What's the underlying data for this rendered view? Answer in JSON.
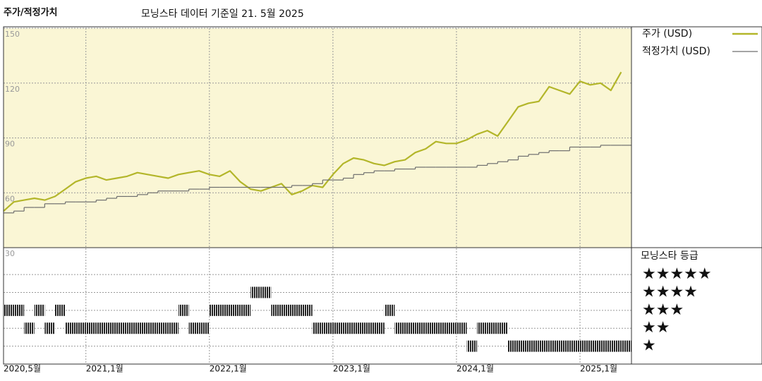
{
  "chart_data": [
    {
      "type": "line",
      "title": "주가/적정가치",
      "subtitle": "모닝스타 데이터 기준일 21. 5월 2025",
      "x": [
        "2020-05",
        "2020-06",
        "2020-07",
        "2020-08",
        "2020-09",
        "2020-10",
        "2020-11",
        "2020-12",
        "2021-01",
        "2021-02",
        "2021-03",
        "2021-04",
        "2021-05",
        "2021-06",
        "2021-07",
        "2021-08",
        "2021-09",
        "2021-10",
        "2021-11",
        "2021-12",
        "2022-01",
        "2022-02",
        "2022-03",
        "2022-04",
        "2022-05",
        "2022-06",
        "2022-07",
        "2022-08",
        "2022-09",
        "2022-10",
        "2022-11",
        "2022-12",
        "2023-01",
        "2023-02",
        "2023-03",
        "2023-04",
        "2023-05",
        "2023-06",
        "2023-07",
        "2023-08",
        "2023-09",
        "2023-10",
        "2023-11",
        "2023-12",
        "2024-01",
        "2024-02",
        "2024-03",
        "2024-04",
        "2024-05",
        "2024-06",
        "2024-07",
        "2024-08",
        "2024-09",
        "2024-10",
        "2024-11",
        "2024-12",
        "2025-01",
        "2025-02",
        "2025-03",
        "2025-04",
        "2025-05"
      ],
      "xlim": [
        "2020-05",
        "2025-06"
      ],
      "ylim": [
        30,
        150
      ],
      "yticks": [
        30,
        60,
        90,
        120,
        150
      ],
      "grid": true,
      "background": "#faf6d5",
      "series": [
        {
          "name": "주가 (USD)",
          "color": "#b3b62a",
          "values": [
            50,
            55,
            56,
            57,
            56,
            58,
            62,
            66,
            68,
            69,
            67,
            68,
            69,
            71,
            70,
            69,
            68,
            70,
            71,
            72,
            70,
            69,
            72,
            66,
            62,
            61,
            63,
            65,
            59,
            61,
            64,
            63,
            70,
            76,
            79,
            78,
            76,
            75,
            77,
            78,
            82,
            84,
            88,
            87,
            87,
            89,
            92,
            94,
            91,
            99,
            107,
            109,
            110,
            118,
            116,
            114,
            121,
            119,
            120,
            116,
            126
          ]
        },
        {
          "name": "적정가치 (USD)",
          "color": "#6e6e6e",
          "step": true,
          "values": [
            49,
            50,
            52,
            52,
            54,
            54,
            55,
            55,
            55,
            56,
            57,
            58,
            58,
            59,
            60,
            61,
            61,
            61,
            62,
            62,
            63,
            63,
            63,
            63,
            63,
            63,
            63,
            63,
            64,
            64,
            65,
            67,
            67,
            68,
            70,
            71,
            72,
            72,
            73,
            73,
            74,
            74,
            74,
            74,
            74,
            74,
            75,
            76,
            77,
            78,
            80,
            81,
            82,
            83,
            83,
            85,
            85,
            85,
            86,
            86,
            86
          ]
        }
      ]
    },
    {
      "type": "strip",
      "title": "모닝스타 등급",
      "x": [
        "2020-05",
        "2020-06",
        "2020-07",
        "2020-08",
        "2020-09",
        "2020-10",
        "2020-11",
        "2020-12",
        "2021-01",
        "2021-02",
        "2021-03",
        "2021-04",
        "2021-05",
        "2021-06",
        "2021-07",
        "2021-08",
        "2021-09",
        "2021-10",
        "2021-11",
        "2021-12",
        "2022-01",
        "2022-02",
        "2022-03",
        "2022-04",
        "2022-05",
        "2022-06",
        "2022-07",
        "2022-08",
        "2022-09",
        "2022-10",
        "2022-11",
        "2022-12",
        "2023-01",
        "2023-02",
        "2023-03",
        "2023-04",
        "2023-05",
        "2023-06",
        "2023-07",
        "2023-08",
        "2023-09",
        "2023-10",
        "2023-11",
        "2023-12",
        "2024-01",
        "2024-02",
        "2024-03",
        "2024-04",
        "2024-05",
        "2024-06",
        "2024-07",
        "2024-08",
        "2024-09",
        "2024-10",
        "2024-11",
        "2024-12",
        "2025-01",
        "2025-02",
        "2025-03",
        "2025-04",
        "2025-05"
      ],
      "values": [
        3,
        3,
        2,
        3,
        2,
        3,
        2,
        2,
        2,
        2,
        2,
        2,
        2,
        2,
        2,
        2,
        2,
        3,
        2,
        2,
        3,
        3,
        3,
        3,
        4,
        4,
        3,
        3,
        3,
        3,
        2,
        2,
        2,
        2,
        2,
        2,
        2,
        3,
        2,
        2,
        2,
        2,
        2,
        2,
        2,
        1,
        2,
        2,
        2,
        1,
        1,
        1,
        1,
        1,
        1,
        1,
        1,
        1,
        1,
        1,
        1
      ],
      "xlim": [
        "2020-05",
        "2025-06"
      ],
      "xticks": [
        {
          "value": "2020-05",
          "label": "2020,5월"
        },
        {
          "value": "2021-01",
          "label": "2021,1월"
        },
        {
          "value": "2022-01",
          "label": "2022,1월"
        },
        {
          "value": "2023-01",
          "label": "2023,1월"
        },
        {
          "value": "2024-01",
          "label": "2024,1월"
        },
        {
          "value": "2025-01",
          "label": "2025,1월"
        }
      ],
      "ylim": [
        0,
        6.5
      ],
      "yticks": [
        {
          "value": 5,
          "label": "★★★★★"
        },
        {
          "value": 4,
          "label": "★★★★"
        },
        {
          "value": 3,
          "label": "★★★"
        },
        {
          "value": 2,
          "label": "★★"
        },
        {
          "value": 1,
          "label": "★"
        }
      ],
      "grid": true
    }
  ]
}
